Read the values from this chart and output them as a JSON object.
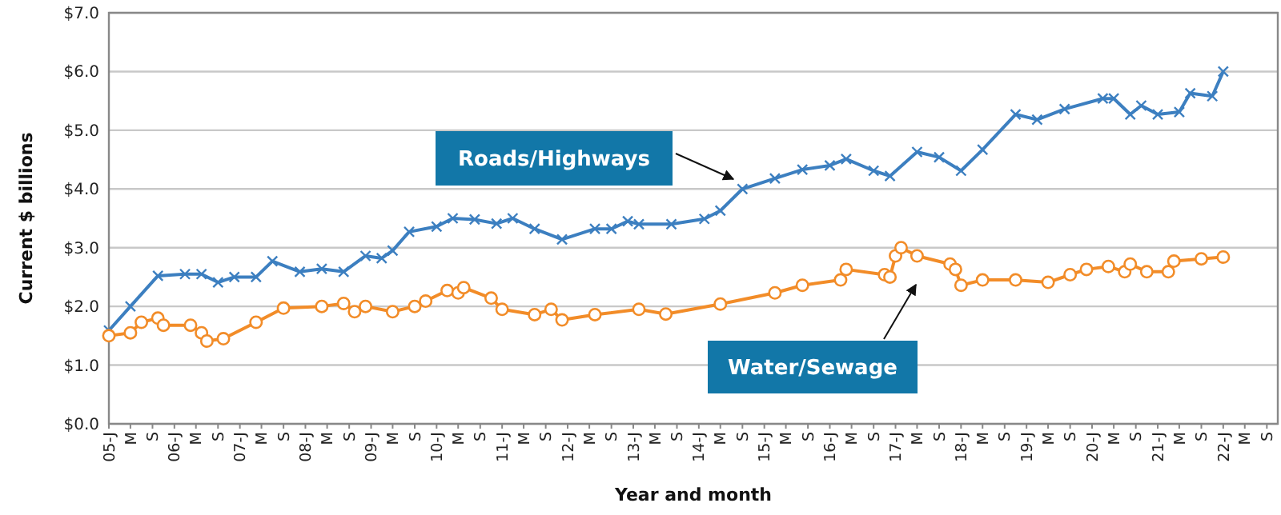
{
  "chart_data": {
    "type": "line",
    "xlabel": "Year and month",
    "ylabel": "Current $ billions",
    "grid": "y",
    "legend": false,
    "line_style": "solid",
    "xlim": [
      "2005-01",
      "2022-11"
    ],
    "xticks": [
      {
        "value": "2005-01",
        "label": "05-J"
      },
      {
        "value": "2005-05",
        "label": "M"
      },
      {
        "value": "2005-09",
        "label": "S"
      },
      {
        "value": "2006-01",
        "label": "06-J"
      },
      {
        "value": "2006-05",
        "label": "M"
      },
      {
        "value": "2006-09",
        "label": "S"
      },
      {
        "value": "2007-01",
        "label": "07-J"
      },
      {
        "value": "2007-05",
        "label": "M"
      },
      {
        "value": "2007-09",
        "label": "S"
      },
      {
        "value": "2008-01",
        "label": "08-J"
      },
      {
        "value": "2008-05",
        "label": "M"
      },
      {
        "value": "2008-09",
        "label": "S"
      },
      {
        "value": "2009-01",
        "label": "09-J"
      },
      {
        "value": "2009-05",
        "label": "M"
      },
      {
        "value": "2009-09",
        "label": "S"
      },
      {
        "value": "2010-01",
        "label": "10-J"
      },
      {
        "value": "2010-05",
        "label": "M"
      },
      {
        "value": "2010-09",
        "label": "S"
      },
      {
        "value": "2011-01",
        "label": "11-J"
      },
      {
        "value": "2011-05",
        "label": "M"
      },
      {
        "value": "2011-09",
        "label": "S"
      },
      {
        "value": "2012-01",
        "label": "12-J"
      },
      {
        "value": "2012-05",
        "label": "M"
      },
      {
        "value": "2012-09",
        "label": "S"
      },
      {
        "value": "2013-01",
        "label": "13-J"
      },
      {
        "value": "2013-05",
        "label": "M"
      },
      {
        "value": "2013-09",
        "label": "S"
      },
      {
        "value": "2014-01",
        "label": "14-J"
      },
      {
        "value": "2014-05",
        "label": "M"
      },
      {
        "value": "2014-09",
        "label": "S"
      },
      {
        "value": "2015-01",
        "label": "15-J"
      },
      {
        "value": "2015-05",
        "label": "M"
      },
      {
        "value": "2015-09",
        "label": "S"
      },
      {
        "value": "2016-01",
        "label": "16-J"
      },
      {
        "value": "2016-05",
        "label": "M"
      },
      {
        "value": "2016-09",
        "label": "S"
      },
      {
        "value": "2017-01",
        "label": "17-J"
      },
      {
        "value": "2017-05",
        "label": "M"
      },
      {
        "value": "2017-09",
        "label": "S"
      },
      {
        "value": "2018-01",
        "label": "18-J"
      },
      {
        "value": "2018-05",
        "label": "M"
      },
      {
        "value": "2018-09",
        "label": "S"
      },
      {
        "value": "2019-01",
        "label": "19-J"
      },
      {
        "value": "2019-05",
        "label": "M"
      },
      {
        "value": "2019-09",
        "label": "S"
      },
      {
        "value": "2020-01",
        "label": "20-J"
      },
      {
        "value": "2020-05",
        "label": "M"
      },
      {
        "value": "2020-09",
        "label": "S"
      },
      {
        "value": "2021-01",
        "label": "21-J"
      },
      {
        "value": "2021-05",
        "label": "M"
      },
      {
        "value": "2021-09",
        "label": "S"
      },
      {
        "value": "2022-01",
        "label": "22-J"
      },
      {
        "value": "2022-05",
        "label": "M"
      },
      {
        "value": "2022-09",
        "label": "S"
      }
    ],
    "ylim": [
      0,
      7
    ],
    "yticks": [
      {
        "value": 0,
        "label": "$0.0"
      },
      {
        "value": 1,
        "label": "$1.0"
      },
      {
        "value": 2,
        "label": "$2.0"
      },
      {
        "value": 3,
        "label": "$3.0"
      },
      {
        "value": 4,
        "label": "$4.0"
      },
      {
        "value": 5,
        "label": "$5.0"
      },
      {
        "value": 6,
        "label": "$6.0"
      },
      {
        "value": 7,
        "label": "$7.0"
      }
    ],
    "series": [
      {
        "name": "Roads/Highways",
        "color": "#3c7fc0",
        "marker": "cross",
        "x": [
          "2005-01",
          "2005-05",
          "2005-10",
          "2006-03",
          "2006-06",
          "2006-09",
          "2006-12",
          "2007-04",
          "2007-07",
          "2007-12",
          "2008-04",
          "2008-08",
          "2008-12",
          "2009-03",
          "2009-05",
          "2009-08",
          "2010-01",
          "2010-04",
          "2010-08",
          "2010-12",
          "2011-03",
          "2011-07",
          "2011-12",
          "2012-06",
          "2012-09",
          "2012-12",
          "2013-02",
          "2013-08",
          "2014-02",
          "2014-05",
          "2014-09",
          "2015-03",
          "2015-08",
          "2016-01",
          "2016-04",
          "2016-09",
          "2016-12",
          "2017-05",
          "2017-09",
          "2018-01",
          "2018-05",
          "2018-11",
          "2019-03",
          "2019-08",
          "2020-03",
          "2020-05",
          "2020-08",
          "2020-10",
          "2021-01",
          "2021-05",
          "2021-07",
          "2021-11",
          "2022-01"
        ],
        "values": [
          1.59,
          2.0,
          2.52,
          2.55,
          2.55,
          2.41,
          2.5,
          2.5,
          2.77,
          2.59,
          2.64,
          2.59,
          2.86,
          2.82,
          2.95,
          3.27,
          3.36,
          3.5,
          3.48,
          3.41,
          3.5,
          3.32,
          3.14,
          3.32,
          3.32,
          3.45,
          3.4,
          3.4,
          3.49,
          3.63,
          4.0,
          4.18,
          4.33,
          4.4,
          4.51,
          4.31,
          4.22,
          4.63,
          4.54,
          4.31,
          4.67,
          5.27,
          5.18,
          5.36,
          5.54,
          5.54,
          5.27,
          5.42,
          5.27,
          5.31,
          5.63,
          5.58,
          6.0
        ]
      },
      {
        "name": "Water/Sewage",
        "color": "#f28c28",
        "marker": "circle",
        "x": [
          "2005-01",
          "2005-05",
          "2005-07",
          "2005-10",
          "2005-11",
          "2006-04",
          "2006-06",
          "2006-07",
          "2006-10",
          "2007-04",
          "2007-09",
          "2008-04",
          "2008-08",
          "2008-10",
          "2008-12",
          "2009-05",
          "2009-09",
          "2009-11",
          "2010-03",
          "2010-05",
          "2010-06",
          "2010-11",
          "2011-01",
          "2011-07",
          "2011-10",
          "2011-12",
          "2012-06",
          "2013-02",
          "2013-07",
          "2014-05",
          "2015-03",
          "2015-08",
          "2016-03",
          "2016-04",
          "2016-11",
          "2016-12",
          "2017-01",
          "2017-02",
          "2017-05",
          "2017-11",
          "2017-12",
          "2018-01",
          "2018-05",
          "2018-11",
          "2019-05",
          "2019-09",
          "2019-12",
          "2020-04",
          "2020-07",
          "2020-08",
          "2020-11",
          "2021-03",
          "2021-04",
          "2021-09",
          "2022-01"
        ],
        "values": [
          1.5,
          1.55,
          1.73,
          1.8,
          1.68,
          1.68,
          1.55,
          1.41,
          1.45,
          1.73,
          1.97,
          2.0,
          2.05,
          1.91,
          2.0,
          1.91,
          2.0,
          2.09,
          2.27,
          2.23,
          2.32,
          2.14,
          1.95,
          1.86,
          1.95,
          1.77,
          1.86,
          1.95,
          1.87,
          2.04,
          2.23,
          2.36,
          2.45,
          2.63,
          2.54,
          2.5,
          2.86,
          3.0,
          2.86,
          2.72,
          2.63,
          2.36,
          2.45,
          2.45,
          2.41,
          2.54,
          2.63,
          2.68,
          2.59,
          2.72,
          2.59,
          2.59,
          2.77,
          2.81,
          2.84
        ]
      }
    ]
  }
}
